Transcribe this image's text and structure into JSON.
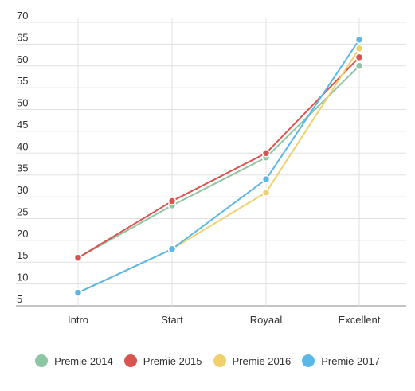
{
  "chart_data": {
    "type": "line",
    "title": "",
    "xlabel": "",
    "ylabel": "",
    "categories": [
      "Intro",
      "Start",
      "Royaal",
      "Excellent"
    ],
    "ylim": [
      5,
      70
    ],
    "yticks": [
      5,
      10,
      15,
      20,
      25,
      30,
      35,
      40,
      45,
      50,
      55,
      60,
      65,
      70
    ],
    "grid": "vertical-and-horizontal",
    "legend_position": "bottom",
    "series": [
      {
        "name": "Premie 2014",
        "color": "#8ec5a3",
        "values": [
          16,
          28,
          39,
          60
        ]
      },
      {
        "name": "Premie 2015",
        "color": "#d9534f",
        "values": [
          16,
          29,
          40,
          62
        ]
      },
      {
        "name": "Premie 2016",
        "color": "#f0d06c",
        "values": [
          8,
          18,
          31,
          64
        ]
      },
      {
        "name": "Premie 2017",
        "color": "#5bb8e6",
        "values": [
          8,
          18,
          34,
          66
        ]
      }
    ]
  }
}
